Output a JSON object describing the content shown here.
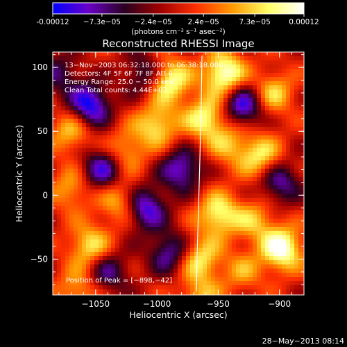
{
  "colorbar": {
    "tick_labels": [
      "-0.00012",
      "−7.3e−05",
      "−2.4e−05",
      "2.4e−05",
      "7.3e−05",
      "0.00012"
    ],
    "tick_values": [
      -0.00012,
      -7.3e-05,
      -2.4e-05,
      2.4e-05,
      7.3e-05,
      0.00012
    ],
    "units_label": "(photons cm⁻² s⁻¹ asec⁻²)",
    "min": -0.00012,
    "max": 0.00012,
    "colors": [
      "#0000ff",
      "#6a00c8",
      "#2a0020",
      "#a00000",
      "#ff3000",
      "#ff9900",
      "#ffff66",
      "#ffffff"
    ]
  },
  "chart_data": {
    "type": "heatmap",
    "title": "Reconstructed RHESSI Image",
    "xlabel": "Heliocentric X (arcsec)",
    "ylabel": "Heliocentric Y (arcsec)",
    "xlim": [
      -1085,
      -880
    ],
    "ylim": [
      -78,
      112
    ],
    "x_ticks": [
      -1050,
      -1000,
      -950,
      -900
    ],
    "x_tick_labels": [
      "−1050",
      "−1000",
      "−950",
      "−900"
    ],
    "y_ticks": [
      -50,
      0,
      50,
      100
    ],
    "y_tick_labels": [
      "−50",
      "0",
      "50",
      "100"
    ],
    "annotations": [
      "13−Nov−2003 06:32:18.000 to 06:38:18.000",
      "Detectors: 4F 5F 6F 7F 8F  Att 0",
      "Energy Range: 25.0 − 50.0 keV",
      "Clean     Total counts: 4.44E+03"
    ],
    "peak_label": "Position of Peak = [−898,−42]",
    "peak": [
      -898,
      -42
    ],
    "grid": false,
    "blobs": [
      {
        "x": -1055,
        "y": 70,
        "v": -1.0
      },
      {
        "x": -1045,
        "y": 20,
        "v": -0.8
      },
      {
        "x": -1010,
        "y": -10,
        "v": -0.9
      },
      {
        "x": -1000,
        "y": 55,
        "v": 0.7
      },
      {
        "x": -990,
        "y": 90,
        "v": 0.9
      },
      {
        "x": -980,
        "y": 20,
        "v": -0.8
      },
      {
        "x": -960,
        "y": 60,
        "v": 0.8
      },
      {
        "x": -945,
        "y": 95,
        "v": 1.0
      },
      {
        "x": -940,
        "y": 40,
        "v": 0.5
      },
      {
        "x": -930,
        "y": 70,
        "v": -0.9
      },
      {
        "x": -915,
        "y": 30,
        "v": 0.7
      },
      {
        "x": -905,
        "y": 80,
        "v": 0.6
      },
      {
        "x": -898,
        "y": -42,
        "v": 1.0
      },
      {
        "x": -920,
        "y": -20,
        "v": 0.5
      },
      {
        "x": -950,
        "y": -15,
        "v": 0.8
      },
      {
        "x": -965,
        "y": -50,
        "v": 0.7
      },
      {
        "x": -1030,
        "y": -5,
        "v": 0.6
      },
      {
        "x": -1055,
        "y": -40,
        "v": 0.7
      },
      {
        "x": -1070,
        "y": 5,
        "v": 0.5
      },
      {
        "x": -1070,
        "y": 50,
        "v": 0.6
      },
      {
        "x": -1040,
        "y": -60,
        "v": -0.6
      },
      {
        "x": -990,
        "y": -45,
        "v": -0.7
      },
      {
        "x": -930,
        "y": -60,
        "v": 0.4
      },
      {
        "x": -900,
        "y": 10,
        "v": -0.7
      },
      {
        "x": -1080,
        "y": 95,
        "v": -0.5
      },
      {
        "x": -1025,
        "y": 35,
        "v": 0.5
      },
      {
        "x": -1010,
        "y": 95,
        "v": -0.6
      },
      {
        "x": -965,
        "y": -80,
        "v": 0.5
      },
      {
        "x": -1065,
        "y": -75,
        "v": 0.5
      }
    ]
  },
  "footer": {
    "timestamp": "28−May−2013 08:14"
  }
}
